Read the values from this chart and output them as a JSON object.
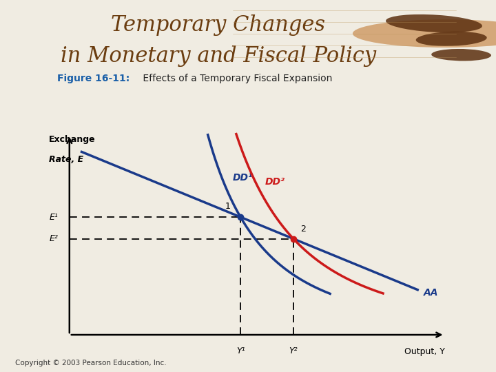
{
  "title_line1": "Temporary Changes",
  "title_line2": "in Monetary and Fiscal Policy",
  "subtitle_bold": "Figure 16-11:",
  "subtitle_rest": " Effects of a Temporary Fiscal Expansion",
  "bg_color": "#f0ece2",
  "header_bg": "#ffffff",
  "title_color": "#6b3d10",
  "subtitle_bold_color": "#1a5fa8",
  "subtitle_rest_color": "#222222",
  "plot_bg": "#f0ece2",
  "ylabel_line1": "Exchange",
  "ylabel_line2": "Rate, E",
  "xlabel": "Output, Y",
  "dd1_color": "#1a3a8a",
  "dd2_color": "#cc1a1a",
  "aa_color": "#1a3a8a",
  "point1_label": "1",
  "point2_label": "2",
  "e1_label": "E¹",
  "e2_label": "E²",
  "y1_label": "Y¹",
  "y2_label": "Y²",
  "dd1_label": "DD¹",
  "dd2_label": "DD²",
  "aa_label": "AA",
  "separator_color": "#d4a017",
  "copyright": "Copyright © 2003 Pearson Education, Inc.",
  "point1": [
    4.2,
    6.5
  ],
  "point2": [
    5.5,
    5.3
  ],
  "xlim": [
    0,
    9.5
  ],
  "ylim": [
    0,
    11.5
  ]
}
